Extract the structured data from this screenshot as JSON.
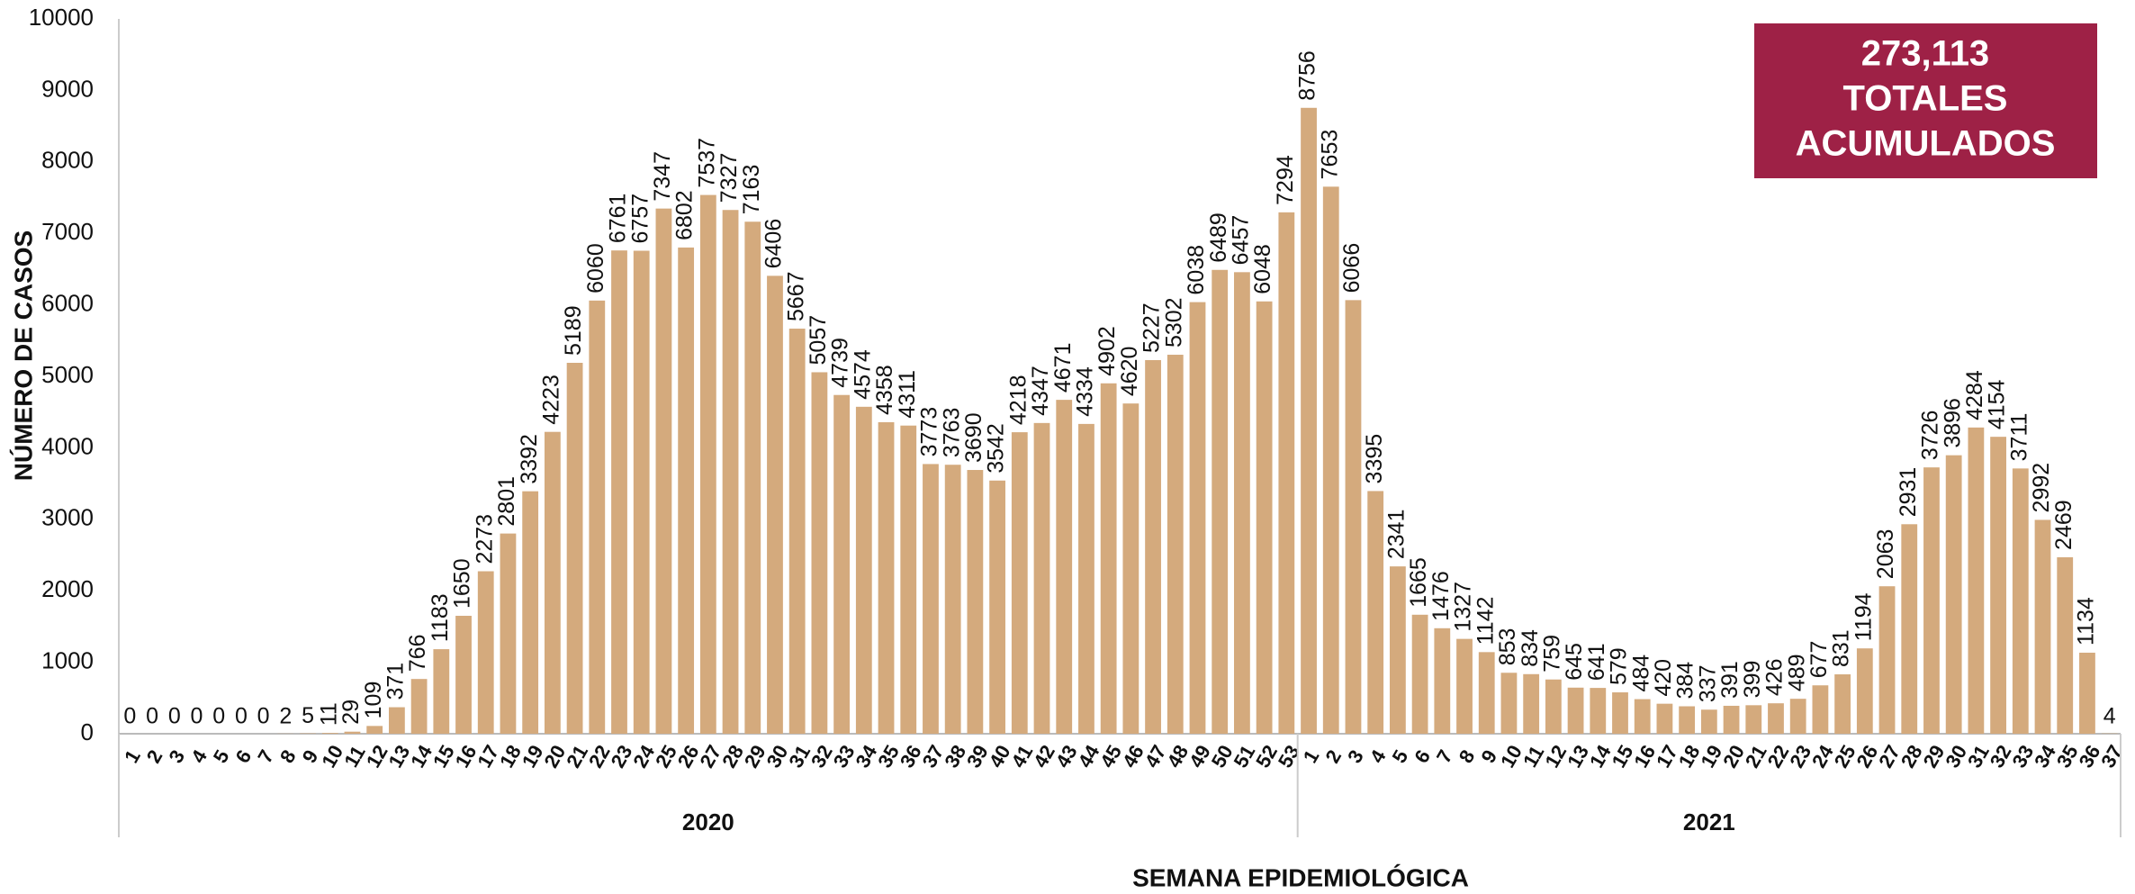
{
  "chart_data": {
    "type": "bar",
    "ylabel": "NÚMERO DE CASOS",
    "xlabel": "SEMANA EPIDEMIOLÓGICA",
    "annotation": {
      "lines": [
        "273,113",
        "TOTALES",
        "ACUMULADOS"
      ],
      "color": "#9e2146"
    },
    "color": "#d4aa7d",
    "ylim": [
      0,
      10000
    ],
    "yticks": [
      0,
      1000,
      2000,
      3000,
      4000,
      5000,
      6000,
      7000,
      8000,
      9000,
      10000
    ],
    "groups": [
      {
        "label": "2020",
        "categories": [
          "1",
          "2",
          "3",
          "4",
          "5",
          "6",
          "7",
          "8",
          "9",
          "10",
          "11",
          "12",
          "13",
          "14",
          "15",
          "16",
          "17",
          "18",
          "19",
          "20",
          "21",
          "22",
          "23",
          "24",
          "25",
          "26",
          "27",
          "28",
          "29",
          "30",
          "31",
          "32",
          "33",
          "34",
          "35",
          "36",
          "37",
          "38",
          "39",
          "40",
          "41",
          "42",
          "43",
          "44",
          "45",
          "46",
          "47",
          "48",
          "49",
          "50",
          "51",
          "52",
          "53"
        ],
        "values": [
          0,
          0,
          0,
          0,
          0,
          0,
          0,
          2,
          5,
          11,
          29,
          109,
          371,
          766,
          1183,
          1650,
          2273,
          2801,
          3392,
          4223,
          5189,
          6060,
          6761,
          6757,
          7347,
          6802,
          7537,
          7327,
          7163,
          6406,
          5667,
          5057,
          4739,
          4574,
          4358,
          4311,
          3773,
          3763,
          3690,
          3542,
          4218,
          4347,
          4671,
          4334,
          4902,
          4620,
          5227,
          5302,
          6038,
          6489,
          6457,
          6048,
          7294
        ]
      },
      {
        "label": "2021",
        "categories": [
          "1",
          "2",
          "3",
          "4",
          "5",
          "6",
          "7",
          "8",
          "9",
          "10",
          "11",
          "12",
          "13",
          "14",
          "15",
          "16",
          "17",
          "18",
          "19",
          "20",
          "21",
          "22",
          "23",
          "24",
          "25",
          "26",
          "27",
          "28",
          "29",
          "30",
          "31",
          "32",
          "33",
          "34",
          "35",
          "36",
          "37"
        ],
        "values": [
          8756,
          7653,
          6066,
          3395,
          2341,
          1665,
          1476,
          1327,
          1142,
          853,
          834,
          759,
          645,
          641,
          579,
          484,
          420,
          384,
          337,
          391,
          399,
          426,
          489,
          677,
          831,
          1194,
          2063,
          2931,
          3726,
          3896,
          4284,
          4154,
          3711,
          2992,
          2469,
          1134,
          4
        ]
      }
    ]
  }
}
